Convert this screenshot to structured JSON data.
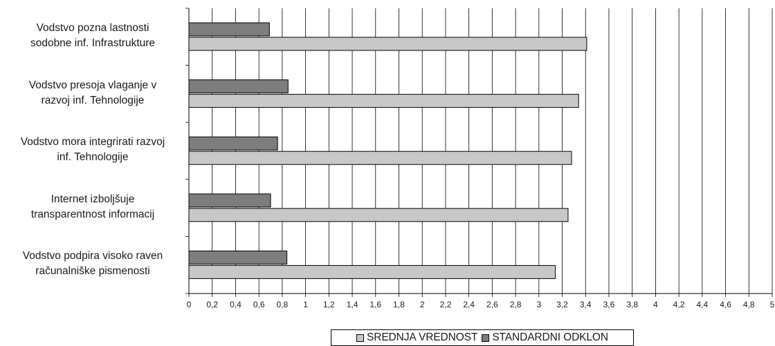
{
  "chart_data": {
    "type": "bar",
    "orientation": "horizontal",
    "title": "",
    "xlabel": "",
    "ylabel": "",
    "xlim": [
      0,
      5
    ],
    "x_ticks": [
      "0",
      "0,2",
      "0,4",
      "0,6",
      "0,8",
      "1",
      "1,2",
      "1,4",
      "1,6",
      "1,8",
      "2",
      "2,2",
      "2,4",
      "2,6",
      "2,8",
      "3",
      "3,2",
      "3,4",
      "3,6",
      "3,8",
      "4",
      "4,2",
      "4,4",
      "4,6",
      "4,8",
      "5"
    ],
    "grid": true,
    "legend_position": "bottom",
    "categories": [
      [
        "Vodstvo pozna lastnosti",
        "sodobne inf. Infrastrukture"
      ],
      [
        "Vodstvo presoja vlaganje v",
        "razvoj inf. Tehnologije"
      ],
      [
        "Vodstvo mora integrirati razvoj",
        "inf. Tehnologije"
      ],
      [
        "Internet izboljšuje",
        "transparentnost informacij"
      ],
      [
        "Vodstvo podpira visoko raven",
        "računalniške pismenosti"
      ]
    ],
    "series": [
      {
        "name": "SREDNJA VREDNOST",
        "color": "#c8c8c8",
        "values": [
          3.41,
          3.34,
          3.28,
          3.25,
          3.14
        ]
      },
      {
        "name": "STANDARDNI ODKLON",
        "color": "#7d7d7d",
        "values": [
          0.69,
          0.85,
          0.76,
          0.7,
          0.84
        ]
      }
    ]
  }
}
